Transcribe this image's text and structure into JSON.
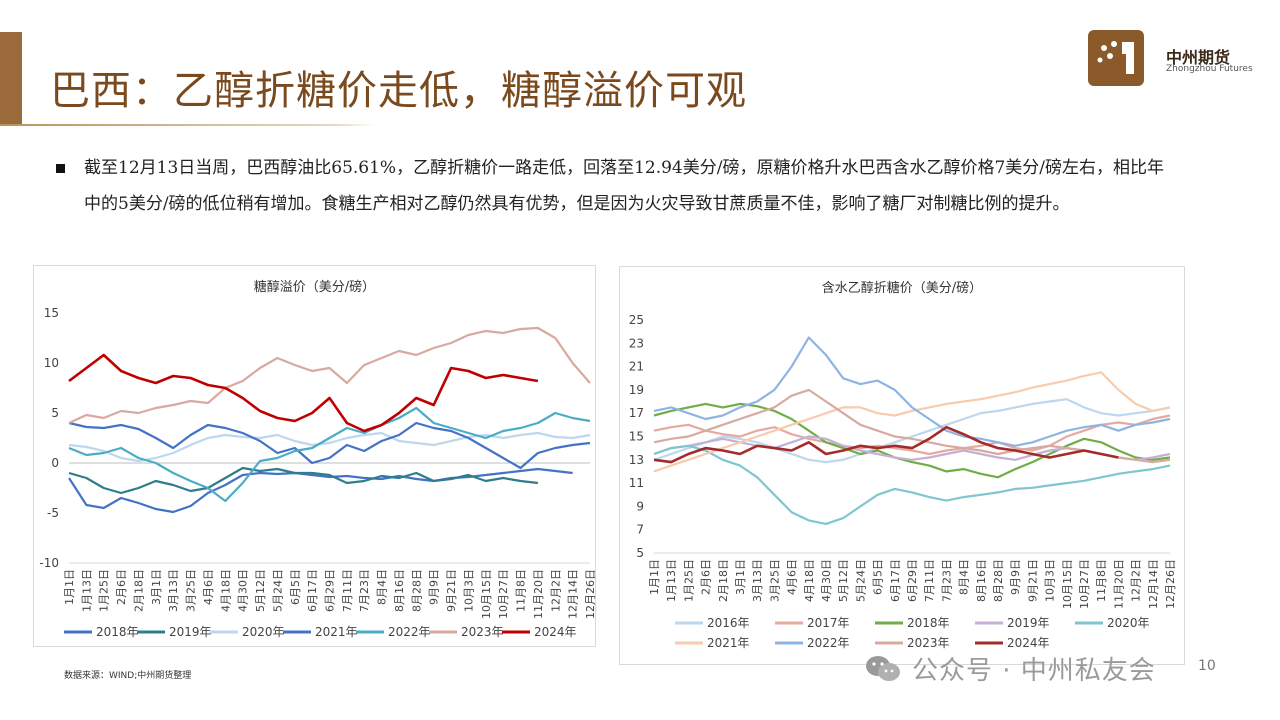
{
  "slide": {
    "title": "巴西：乙醇折糖价走低，糖醇溢价可观",
    "brand_name": "中州期货",
    "brand_sub": "Zhongzhou Futures",
    "bullet": "截至12月13日当周，巴西醇油比65.61%，乙醇折糖价一路走低，回落至12.94美分/磅，原糖价格升水巴西含水乙醇价格7美分/磅左右，相比年中的5美分/磅的低位稍有增加。食糖生产相对乙醇仍然具有优势，但是因为火灾导致甘蔗质量不佳，影响了糖厂对制糖比例的提升。",
    "source": "数据来源：WIND;中州期货整理",
    "page_number": "10",
    "watermark": "公众号 · 中州私友会"
  },
  "chart_data": [
    {
      "type": "line",
      "title": "糖醇溢价（美分/磅）",
      "ylim": [
        -10,
        15
      ],
      "yticks": [
        "15",
        "10",
        "5",
        "0",
        "-5",
        "-10"
      ],
      "categories": [
        "1月1日",
        "1月13日",
        "1月25日",
        "2月6日",
        "2月18日",
        "3月1日",
        "3月13日",
        "3月25日",
        "4月6日",
        "4月18日",
        "4月30日",
        "5月12日",
        "5月24日",
        "6月5日",
        "6月17日",
        "6月29日",
        "7月11日",
        "7月23日",
        "8月4日",
        "8月16日",
        "8月28日",
        "9月9日",
        "9月21日",
        "10月3日",
        "10月15日",
        "10月27日",
        "11月8日",
        "11月20日",
        "12月2日",
        "12月14日",
        "12月26日"
      ],
      "legend_position": "bottom",
      "series": [
        {
          "name": "2018年",
          "color": "#4472c4",
          "values": [
            -1.5,
            -4.2,
            -4.5,
            -3.5,
            -4.0,
            -4.6,
            -4.9,
            -4.3,
            -3.0,
            -2.2,
            -1.2,
            -1.0,
            -1.1,
            -1.0,
            -1.2,
            -1.4,
            -1.3,
            -1.5,
            -1.6,
            -1.3,
            -1.6,
            -1.8,
            -1.5,
            -1.4,
            -1.2,
            -1.0,
            -0.8,
            -0.6,
            -0.8,
            -1.0,
            null
          ]
        },
        {
          "name": "2019年",
          "color": "#2e7d8c",
          "values": [
            -1.0,
            -1.5,
            -2.5,
            -3.0,
            -2.5,
            -1.8,
            -2.2,
            -2.8,
            -2.5,
            -1.5,
            -0.5,
            -0.8,
            -0.6,
            -1.0,
            -1.0,
            -1.2,
            -2.0,
            -1.8,
            -1.3,
            -1.5,
            -1.0,
            -1.8,
            -1.6,
            -1.2,
            -1.8,
            -1.5,
            -1.8,
            -2.0,
            null,
            null,
            null
          ]
        },
        {
          "name": "2020年",
          "color": "#bdd7ee",
          "values": [
            1.8,
            1.6,
            1.2,
            0.5,
            0.2,
            0.5,
            1.0,
            1.8,
            2.5,
            2.8,
            2.6,
            2.5,
            2.8,
            2.2,
            1.8,
            2.0,
            2.5,
            2.8,
            3.0,
            2.2,
            2.0,
            1.8,
            2.2,
            2.6,
            2.8,
            2.5,
            2.8,
            3.0,
            2.6,
            2.5,
            2.8
          ]
        },
        {
          "name": "2021年",
          "color": "#4472c4",
          "values": [
            4.0,
            3.6,
            3.5,
            3.8,
            3.4,
            2.5,
            1.5,
            2.8,
            3.8,
            3.5,
            3.0,
            2.2,
            1.0,
            1.5,
            0.0,
            0.5,
            1.8,
            1.2,
            2.2,
            2.8,
            4.0,
            3.5,
            3.2,
            2.5,
            1.5,
            0.5,
            -0.5,
            1.0,
            1.5,
            1.8,
            2.0
          ]
        },
        {
          "name": "2022年",
          "color": "#4bacc6",
          "values": [
            1.5,
            0.8,
            1.0,
            1.5,
            0.5,
            0.0,
            -1.0,
            -1.8,
            -2.5,
            -3.8,
            -2.0,
            0.2,
            0.5,
            1.2,
            1.5,
            2.5,
            3.5,
            3.0,
            3.8,
            4.5,
            5.5,
            4.0,
            3.5,
            3.0,
            2.5,
            3.2,
            3.5,
            4.0,
            5.0,
            4.5,
            4.2
          ]
        },
        {
          "name": "2023年",
          "color": "#d9a9a0",
          "values": [
            4.0,
            4.8,
            4.5,
            5.2,
            5.0,
            5.5,
            5.8,
            6.2,
            6.0,
            7.5,
            8.2,
            9.5,
            10.5,
            9.8,
            9.2,
            9.5,
            8.0,
            9.8,
            10.5,
            11.2,
            10.8,
            11.5,
            12.0,
            12.8,
            13.2,
            13.0,
            13.4,
            13.5,
            12.5,
            10.0,
            8.0
          ]
        },
        {
          "name": "2024年",
          "color": "#c00000",
          "values": [
            8.2,
            9.5,
            10.8,
            9.2,
            8.5,
            8.0,
            8.7,
            8.5,
            7.8,
            7.5,
            6.5,
            5.2,
            4.5,
            4.2,
            5.0,
            6.5,
            4.0,
            3.2,
            3.8,
            5.0,
            6.5,
            5.8,
            9.5,
            9.2,
            8.5,
            8.8,
            8.5,
            8.2,
            null,
            null,
            null
          ]
        }
      ]
    },
    {
      "type": "line",
      "title": "含水乙醇折糖价（美分/磅）",
      "ylim": [
        5,
        25
      ],
      "yticks": [
        "25",
        "23",
        "21",
        "19",
        "17",
        "15",
        "13",
        "11",
        "9",
        "7",
        "5"
      ],
      "categories": [
        "1月1日",
        "1月13日",
        "1月25日",
        "2月6日",
        "2月18日",
        "3月1日",
        "3月13日",
        "3月25日",
        "4月6日",
        "4月18日",
        "4月30日",
        "5月12日",
        "5月24日",
        "6月5日",
        "6月17日",
        "6月29日",
        "7月11日",
        "7月23日",
        "8月4日",
        "8月16日",
        "8月28日",
        "9月9日",
        "9月21日",
        "10月3日",
        "10月15日",
        "10月27日",
        "11月8日",
        "11月20日",
        "12月2日",
        "12月14日",
        "12月26日"
      ],
      "legend_position": "bottom",
      "series": [
        {
          "name": "2016年",
          "color": "#bdd7ee",
          "values": [
            13.0,
            13.5,
            14.0,
            14.5,
            15.0,
            14.8,
            14.5,
            14.0,
            13.5,
            13.0,
            12.8,
            13.0,
            13.5,
            14.0,
            14.5,
            15.0,
            15.5,
            16.0,
            16.5,
            17.0,
            17.2,
            17.5,
            17.8,
            18.0,
            18.2,
            17.5,
            17.0,
            16.8,
            17.0,
            17.2,
            17.5
          ]
        },
        {
          "name": "2017年",
          "color": "#e6a9a0",
          "values": [
            15.5,
            15.8,
            16.0,
            15.5,
            15.2,
            15.0,
            15.5,
            15.8,
            15.2,
            14.8,
            14.5,
            14.2,
            14.0,
            14.2,
            14.0,
            13.8,
            13.5,
            13.8,
            14.0,
            14.2,
            14.5,
            14.0,
            13.8,
            14.2,
            15.0,
            15.5,
            16.0,
            16.2,
            16.0,
            16.5,
            16.8
          ]
        },
        {
          "name": "2018年",
          "color": "#70ad47",
          "values": [
            16.8,
            17.2,
            17.5,
            17.8,
            17.5,
            17.8,
            17.6,
            17.2,
            16.5,
            15.5,
            14.5,
            14.0,
            13.5,
            13.8,
            13.2,
            12.8,
            12.5,
            12.0,
            12.2,
            11.8,
            11.5,
            12.2,
            12.8,
            13.5,
            14.2,
            14.8,
            14.5,
            13.8,
            13.2,
            13.0,
            13.2
          ]
        },
        {
          "name": "2019年",
          "color": "#c5b0d5",
          "values": [
            13.5,
            14.0,
            14.2,
            14.5,
            14.8,
            14.5,
            14.2,
            14.0,
            14.5,
            15.0,
            14.8,
            14.2,
            13.8,
            13.5,
            13.2,
            13.0,
            13.2,
            13.5,
            13.8,
            13.5,
            13.2,
            13.0,
            13.4,
            13.8,
            14.0,
            13.8,
            13.5,
            13.2,
            13.0,
            13.2,
            13.5
          ]
        },
        {
          "name": "2020年",
          "color": "#7ec6d0",
          "values": [
            13.5,
            14.0,
            14.2,
            13.8,
            13.0,
            12.5,
            11.5,
            10.0,
            8.5,
            7.8,
            7.5,
            8.0,
            9.0,
            10.0,
            10.5,
            10.2,
            9.8,
            9.5,
            9.8,
            10.0,
            10.2,
            10.5,
            10.6,
            10.8,
            11.0,
            11.2,
            11.5,
            11.8,
            12.0,
            12.2,
            12.5
          ]
        },
        {
          "name": "2021年",
          "color": "#f8cbad",
          "values": [
            12.0,
            12.5,
            13.0,
            13.5,
            14.0,
            14.5,
            15.0,
            15.5,
            16.0,
            16.5,
            17.0,
            17.5,
            17.5,
            17.0,
            16.8,
            17.2,
            17.5,
            17.8,
            18.0,
            18.2,
            18.5,
            18.8,
            19.2,
            19.5,
            19.8,
            20.2,
            20.5,
            19.0,
            17.8,
            17.2,
            17.5
          ]
        },
        {
          "name": "2022年",
          "color": "#8eb4e3",
          "values": [
            17.2,
            17.5,
            17.0,
            16.5,
            16.8,
            17.5,
            18.0,
            19.0,
            21.0,
            23.5,
            22.0,
            20.0,
            19.5,
            19.8,
            19.0,
            17.5,
            16.5,
            15.5,
            15.0,
            14.8,
            14.5,
            14.2,
            14.5,
            15.0,
            15.5,
            15.8,
            16.0,
            15.5,
            16.0,
            16.2,
            16.5
          ]
        },
        {
          "name": "2023年",
          "color": "#d9a9a0",
          "values": [
            14.5,
            14.8,
            15.0,
            15.5,
            16.0,
            16.5,
            17.0,
            17.5,
            18.5,
            19.0,
            18.0,
            17.0,
            16.0,
            15.5,
            15.0,
            14.8,
            14.5,
            14.2,
            14.0,
            13.8,
            13.5,
            13.8,
            14.0,
            14.2,
            14.0,
            13.8,
            13.5,
            13.2,
            13.0,
            12.8,
            13.0
          ]
        },
        {
          "name": "2024年",
          "color": "#a52a2a",
          "values": [
            13.0,
            12.8,
            13.5,
            14.0,
            13.8,
            13.5,
            14.2,
            14.0,
            13.8,
            14.5,
            13.5,
            13.8,
            14.2,
            14.0,
            14.2,
            14.0,
            14.8,
            15.8,
            15.2,
            14.5,
            14.0,
            13.8,
            13.5,
            13.2,
            13.5,
            13.8,
            13.5,
            13.2,
            null,
            null,
            null
          ]
        }
      ]
    }
  ]
}
